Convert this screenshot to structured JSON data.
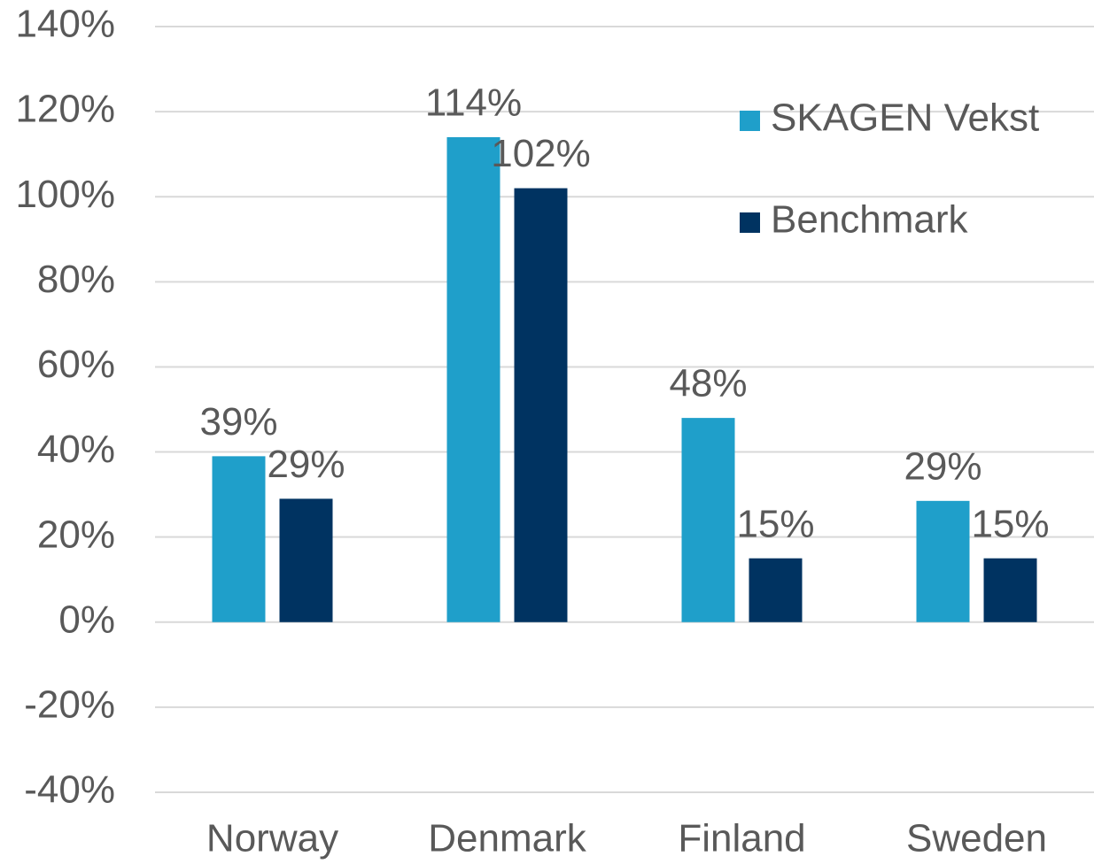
{
  "chart_data": {
    "type": "bar",
    "categories": [
      "Norway",
      "Denmark",
      "Finland",
      "Sweden"
    ],
    "series": [
      {
        "name": "SKAGEN Vekst",
        "color": "#1f9fca",
        "values": [
          39,
          114,
          48,
          28.5
        ],
        "value_labels": [
          "39%",
          "114%",
          "48%",
          "29%"
        ]
      },
      {
        "name": "Benchmark",
        "color": "#003361",
        "values": [
          29,
          102,
          15,
          15
        ],
        "value_labels": [
          "29%",
          "102%",
          "15%",
          "15%"
        ]
      }
    ],
    "ylim": [
      -40,
      140
    ],
    "yticks": [
      {
        "value": -40,
        "label": "-40%"
      },
      {
        "value": -20,
        "label": "-20%"
      },
      {
        "value": 0,
        "label": "0%"
      },
      {
        "value": 20,
        "label": "20%"
      },
      {
        "value": 40,
        "label": "40%"
      },
      {
        "value": 60,
        "label": "60%"
      },
      {
        "value": 80,
        "label": "80%"
      },
      {
        "value": 100,
        "label": "100%"
      },
      {
        "value": 120,
        "label": "120%"
      },
      {
        "value": 140,
        "label": "140%"
      }
    ],
    "grid": true,
    "legend": "top-right"
  }
}
